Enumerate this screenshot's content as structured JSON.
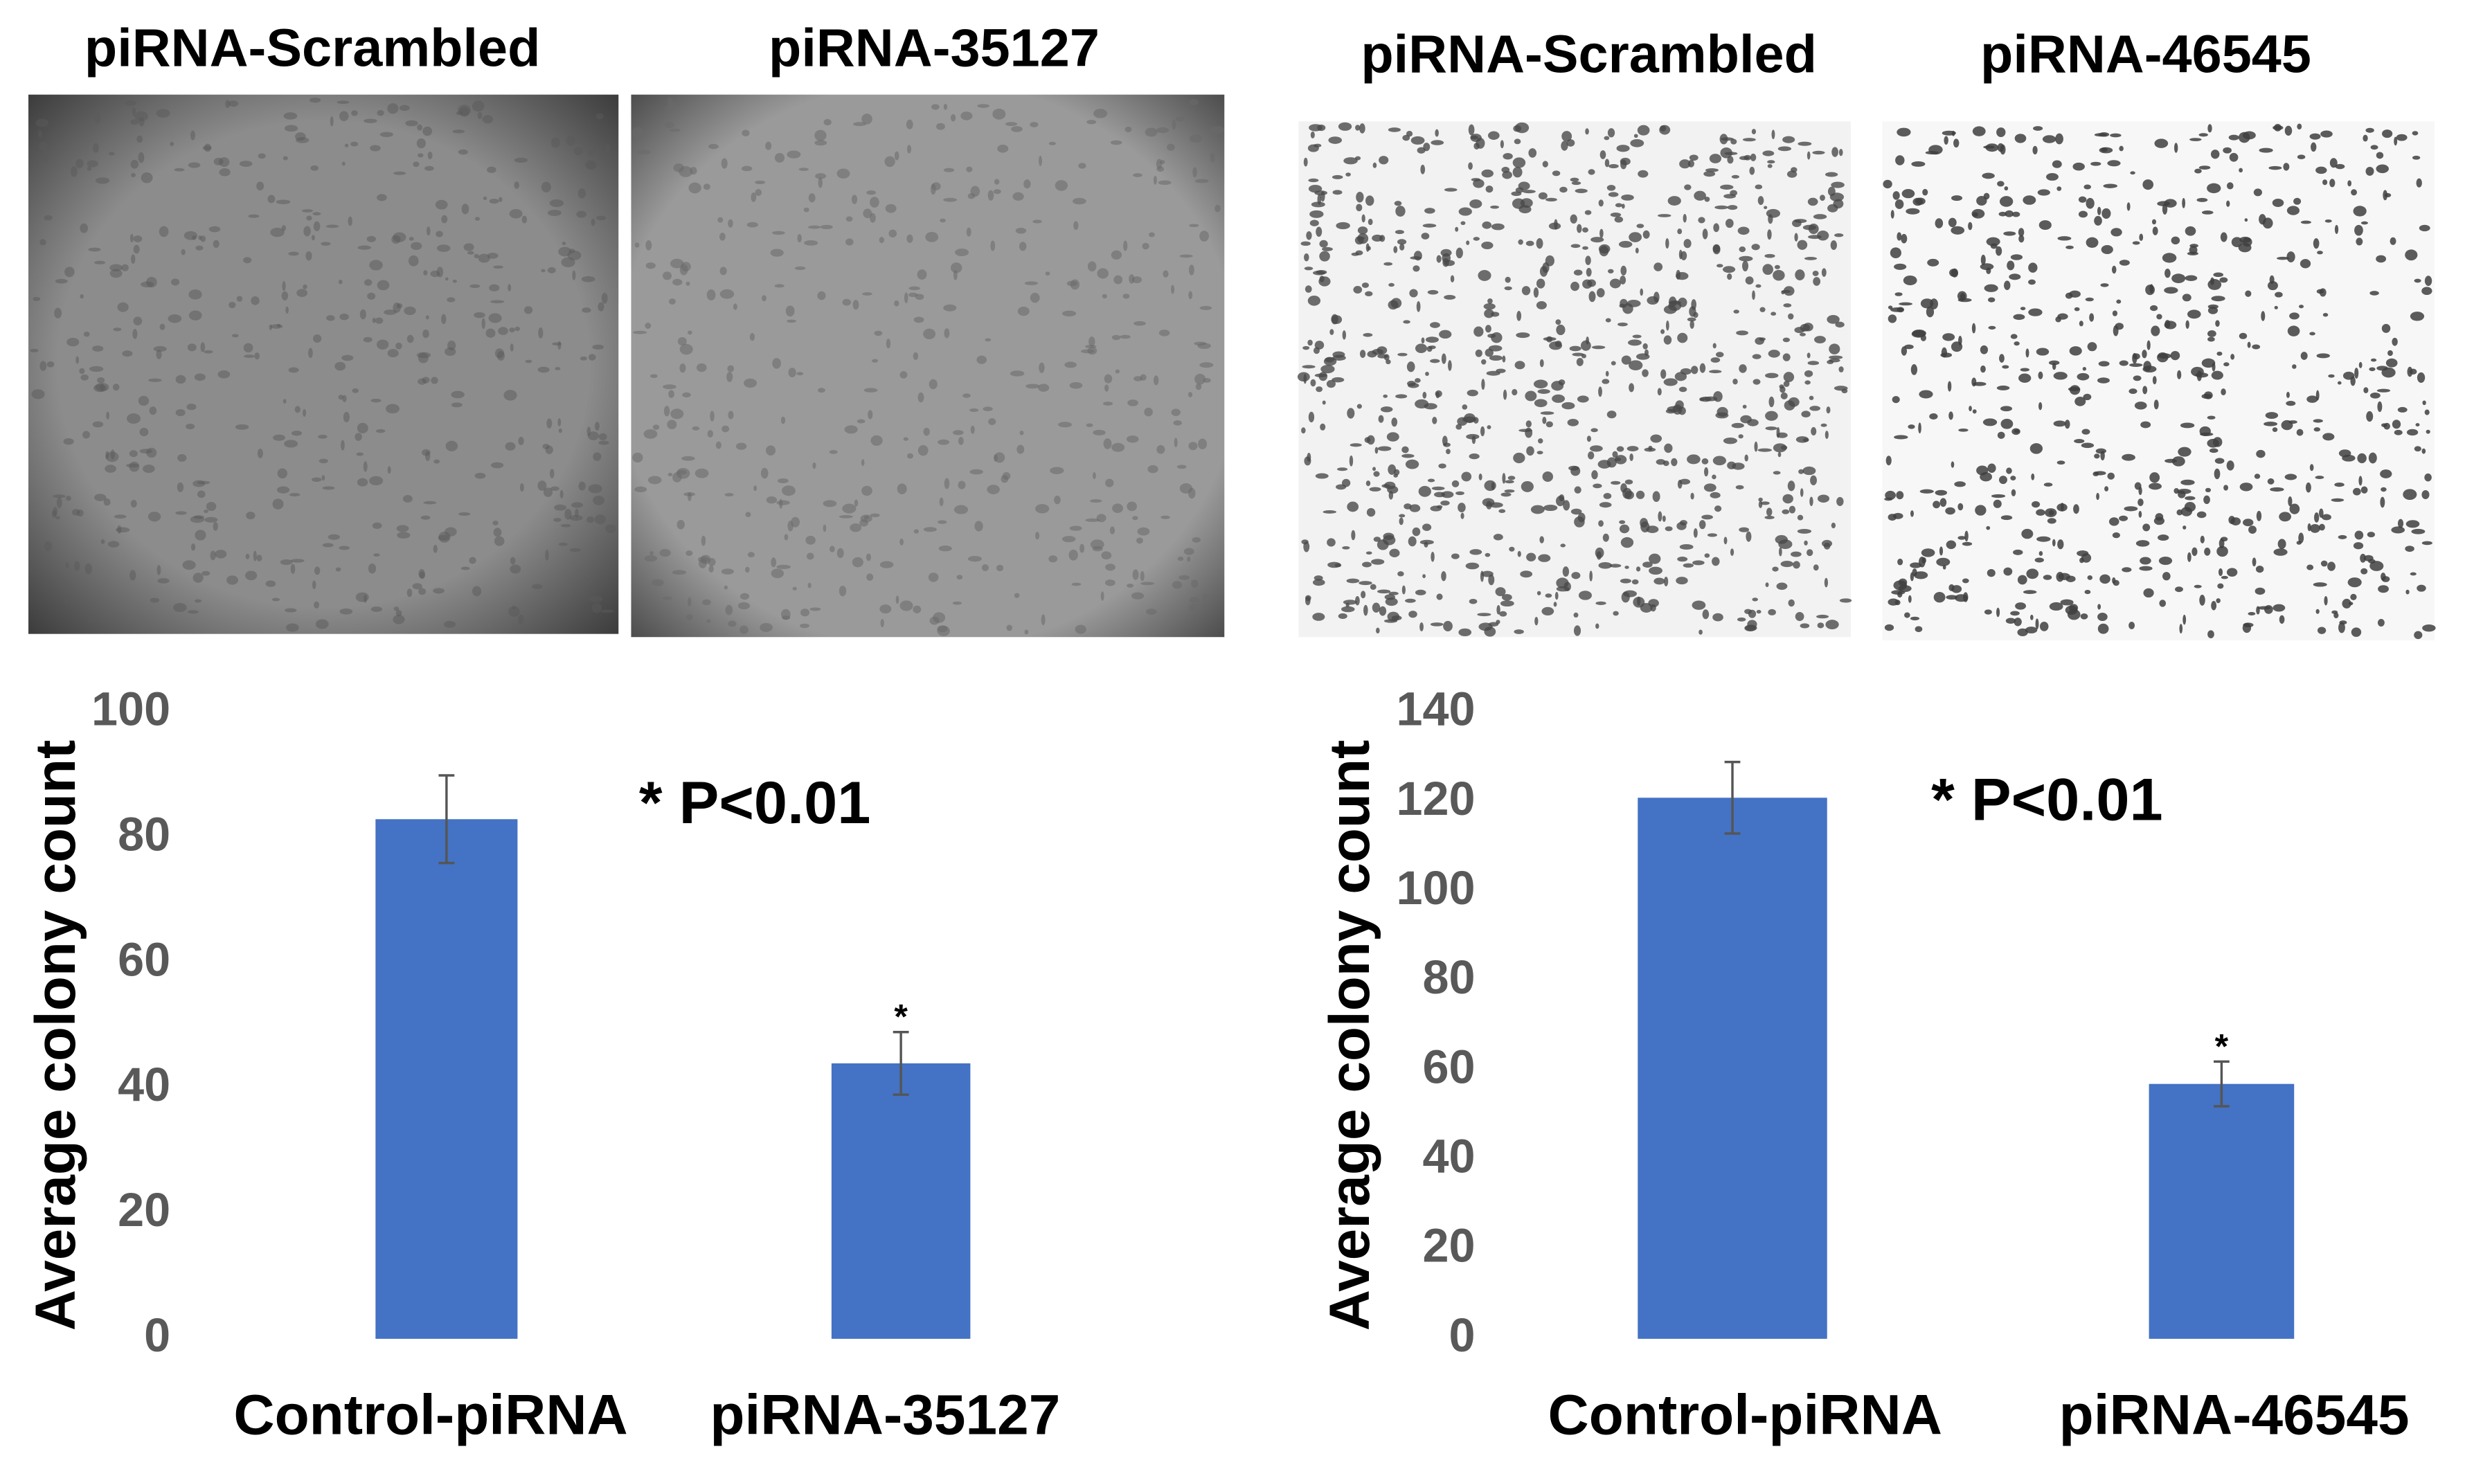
{
  "image_panels": [
    {
      "title": "piRNA-Scrambled"
    },
    {
      "title": "piRNA-35127"
    },
    {
      "title": "piRNA-Scrambled"
    },
    {
      "title": "piRNA-46545"
    }
  ],
  "chart_data": [
    {
      "type": "bar",
      "y_label": "Average colony count",
      "annotation": "* P<0.01",
      "categories": [
        "Control-piRNA",
        "piRNA-35127"
      ],
      "values": [
        83,
        44
      ],
      "errors": [
        7,
        5
      ],
      "bar_labels": [
        null,
        "*"
      ],
      "color": "#4472c4",
      "ylim": [
        0,
        100
      ],
      "yticks": [
        0,
        20,
        40,
        60,
        80,
        100
      ]
    },
    {
      "type": "bar",
      "y_label": "Average colony count",
      "annotation": "* P<0.01",
      "categories": [
        "Control-piRNA",
        "piRNA-46545"
      ],
      "values": [
        121,
        57
      ],
      "errors": [
        8,
        5
      ],
      "bar_labels": [
        null,
        "*"
      ],
      "color": "#4472c4",
      "ylim": [
        0,
        140
      ],
      "yticks": [
        0,
        20,
        40,
        60,
        80,
        100,
        120,
        140
      ]
    }
  ]
}
